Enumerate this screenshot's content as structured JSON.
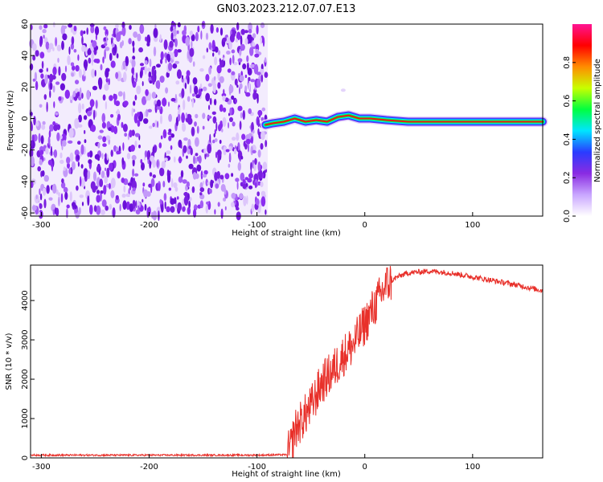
{
  "title": "GN03.2023.212.07.07.E13",
  "chart_data": [
    {
      "type": "heatmap",
      "xlabel": "Height of straight line (km)",
      "ylabel": "Frequency (Hz)",
      "xlim": [
        -310,
        165
      ],
      "ylim": [
        -62,
        60
      ],
      "xticks": [
        -300,
        -200,
        -100,
        0,
        100
      ],
      "xtick_labels": [
        "-300",
        "-200",
        "-100",
        "0",
        "100"
      ],
      "yticks": [
        -60,
        -40,
        -20,
        0,
        20,
        40,
        60
      ],
      "ytick_labels": [
        "-60",
        "-40",
        "-20",
        "0",
        "20",
        "40",
        "60"
      ],
      "noise_region_x": [
        -310,
        -90
      ],
      "signal_track": {
        "x": [
          -92,
          -85,
          -75,
          -65,
          -55,
          -45,
          -35,
          -25,
          -15,
          -5,
          5,
          20,
          40,
          60,
          80,
          100,
          120,
          140,
          165
        ],
        "freq": [
          -4,
          -3,
          -2,
          0,
          -2,
          -1,
          -2,
          1,
          2,
          0,
          0,
          -1,
          -2,
          -2,
          -2,
          -2,
          -2,
          -2,
          -2
        ]
      },
      "colorbar": {
        "label": "Normalized spectral amplitude",
        "range": [
          0,
          1
        ],
        "ticks": [
          0.0,
          0.2,
          0.4,
          0.6,
          0.8
        ],
        "tick_labels": [
          "0.0",
          "0.2",
          "0.4",
          "0.6",
          "0.8"
        ],
        "colors": [
          "#ffffff",
          "#c9a6ff",
          "#8a2be2",
          "#2a3cff",
          "#00e5ff",
          "#00ff40",
          "#c8ff00",
          "#ff8c00",
          "#ff0000",
          "#ff1493"
        ]
      },
      "grid": false
    },
    {
      "type": "line",
      "xlabel": "Height of straight line (km)",
      "ylabel": "SNR (10 * v/v)",
      "xlim": [
        -310,
        165
      ],
      "ylim": [
        0,
        4900
      ],
      "xticks": [
        -300,
        -200,
        -100,
        0,
        100
      ],
      "xtick_labels": [
        "-300",
        "-200",
        "-100",
        "0",
        "100"
      ],
      "yticks": [
        0,
        1000,
        2000,
        3000,
        4000
      ],
      "ytick_labels": [
        "0",
        "1000",
        "2000",
        "3000",
        "4000"
      ],
      "series": [
        {
          "color": "#e8302a",
          "x": [
            -310,
            -100,
            -72,
            -68,
            -65,
            -60,
            -50,
            -40,
            -30,
            -20,
            -10,
            0,
            10,
            20,
            30,
            40,
            60,
            80,
            100,
            120,
            140,
            165
          ],
          "y": [
            70,
            70,
            80,
            300,
            700,
            900,
            1300,
            1900,
            2200,
            2600,
            2900,
            3400,
            3900,
            4400,
            4600,
            4700,
            4750,
            4700,
            4600,
            4500,
            4400,
            4250
          ]
        }
      ],
      "grid": false
    }
  ]
}
